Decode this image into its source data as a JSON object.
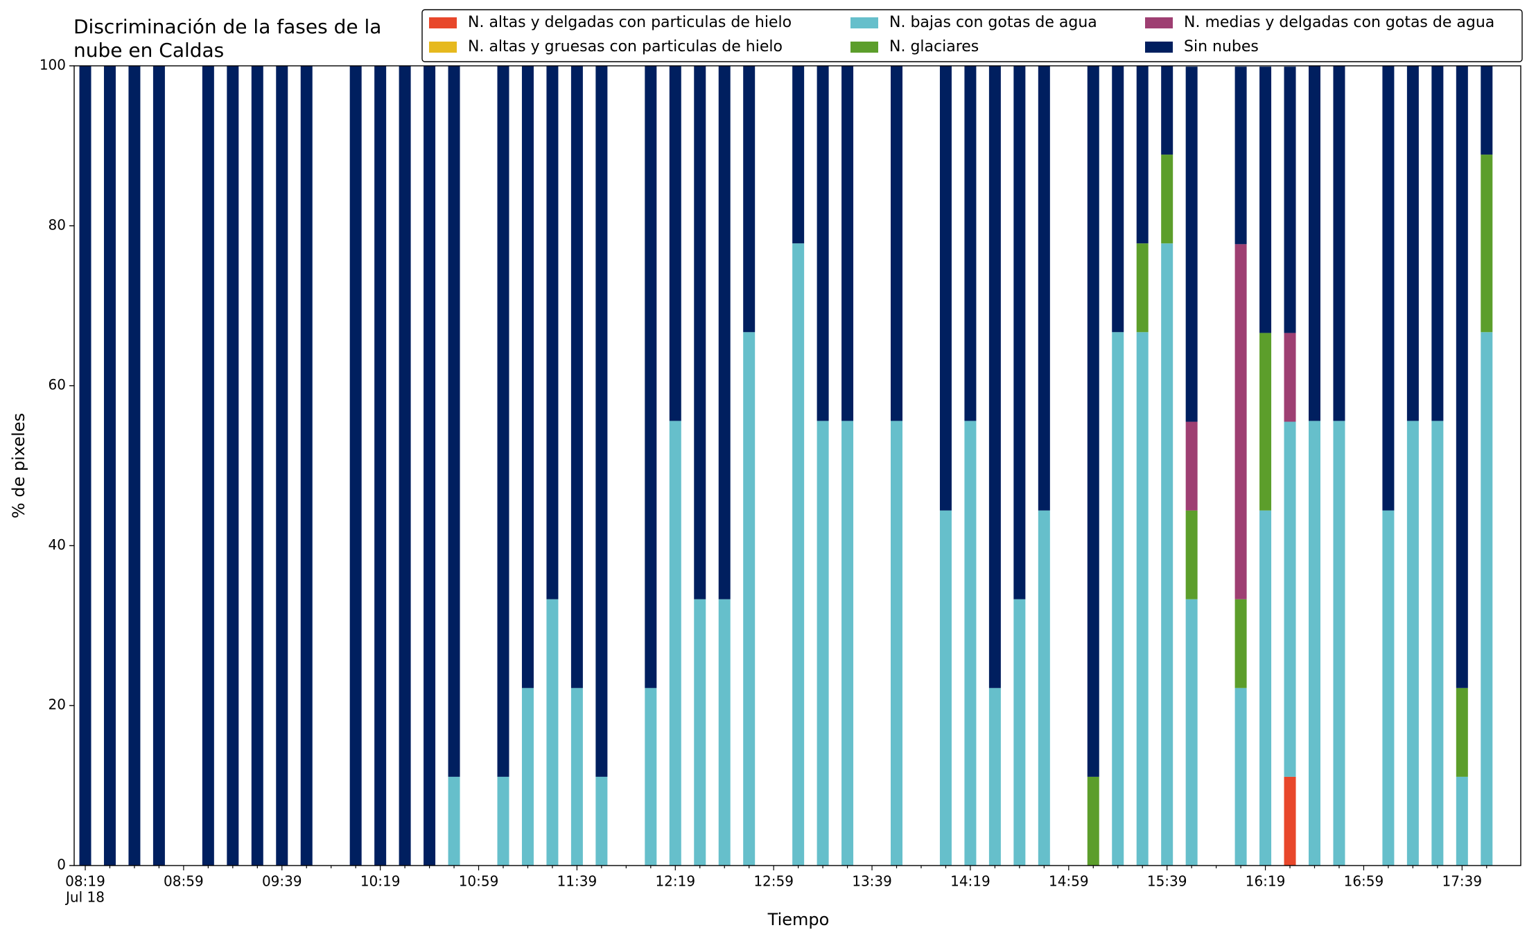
{
  "chart_data": {
    "type": "bar",
    "stacked": true,
    "title": [
      "Discriminación de la fases de la",
      "nube en Caldas"
    ],
    "x_label": "Tiempo",
    "y_label": "% de pixeles",
    "x_sublabel": "Jul 18",
    "categories": [
      "08:19",
      null,
      null,
      null,
      "08:59",
      null,
      null,
      null,
      "09:39",
      null,
      null,
      null,
      "10:19",
      null,
      null,
      null,
      "10:59",
      null,
      null,
      null,
      "11:39",
      null,
      null,
      null,
      "12:19",
      null,
      null,
      null,
      "12:59",
      null,
      null,
      null,
      "13:39",
      null,
      null,
      null,
      "14:19",
      null,
      null,
      null,
      "14:59",
      null,
      null,
      null,
      "15:39",
      null,
      null,
      null,
      "16:19",
      null,
      null,
      null,
      "16:59",
      null,
      null,
      null,
      "17:39",
      null
    ],
    "ylim": [
      0,
      100
    ],
    "yticks": [
      0,
      20,
      40,
      60,
      80,
      100
    ],
    "grid": false,
    "legend": "top right",
    "series": [
      {
        "name": "N. altas y delgadas con particulas de hielo",
        "color": "#e8472b",
        "values": [
          0,
          0,
          0,
          0,
          null,
          0,
          0,
          0,
          0,
          0,
          null,
          0,
          0,
          0,
          0,
          0,
          null,
          0,
          0,
          0,
          0,
          0,
          null,
          0,
          0,
          0,
          0,
          0,
          null,
          0,
          0,
          0,
          null,
          0,
          null,
          0,
          0,
          0,
          0,
          0,
          null,
          0,
          0,
          0,
          0,
          0,
          null,
          0,
          0,
          11.1,
          0,
          0,
          null,
          0,
          0,
          0,
          0,
          0
        ]
      },
      {
        "name": "N. altas y gruesas con particulas de hielo",
        "color": "#e6b91e",
        "values": [
          0,
          0,
          0,
          0,
          null,
          0,
          0,
          0,
          0,
          0,
          null,
          0,
          0,
          0,
          0,
          0,
          null,
          0,
          0,
          0,
          0,
          0,
          null,
          0,
          0,
          0,
          0,
          0,
          null,
          0,
          0,
          0,
          null,
          0,
          null,
          0,
          0,
          0,
          0,
          0,
          null,
          0,
          0,
          0,
          0,
          0,
          null,
          0,
          0,
          0,
          0,
          0,
          null,
          0,
          0,
          0,
          0,
          0
        ]
      },
      {
        "name": "N. bajas con gotas de agua",
        "color": "#66bfcb",
        "values": [
          0,
          0,
          0,
          0,
          null,
          0,
          0,
          0,
          0,
          0,
          null,
          0,
          0,
          0,
          0,
          11.1,
          null,
          11.1,
          22.2,
          33.3,
          22.2,
          11.1,
          null,
          22.2,
          55.6,
          33.3,
          33.3,
          66.7,
          null,
          77.8,
          55.6,
          55.6,
          null,
          55.6,
          null,
          44.4,
          55.6,
          22.2,
          33.3,
          44.4,
          null,
          0,
          66.7,
          66.7,
          77.8,
          33.3,
          null,
          22.2,
          44.4,
          44.4,
          55.6,
          55.6,
          null,
          44.4,
          55.6,
          55.6,
          11.1,
          66.7
        ]
      },
      {
        "name": "N. glaciares",
        "color": "#5c9e2b",
        "values": [
          0,
          0,
          0,
          0,
          null,
          0,
          0,
          0,
          0,
          0,
          null,
          0,
          0,
          0,
          0,
          0,
          null,
          0,
          0,
          0,
          0,
          0,
          null,
          0,
          0,
          0,
          0,
          0,
          null,
          0,
          0,
          0,
          null,
          0,
          null,
          0,
          0,
          0,
          0,
          0,
          null,
          11.1,
          0,
          11.1,
          11.1,
          11.1,
          null,
          11.1,
          22.2,
          0,
          0,
          0,
          null,
          0,
          0,
          0,
          11.1,
          22.2
        ]
      },
      {
        "name": "N. medias y delgadas con gotas de agua",
        "color": "#9e3f72",
        "values": [
          0,
          0,
          0,
          0,
          null,
          0,
          0,
          0,
          0,
          0,
          null,
          0,
          0,
          0,
          0,
          0,
          null,
          0,
          0,
          0,
          0,
          0,
          null,
          0,
          0,
          0,
          0,
          0,
          null,
          0,
          0,
          0,
          null,
          0,
          null,
          0,
          0,
          0,
          0,
          0,
          null,
          0,
          0,
          0,
          0,
          11.1,
          null,
          44.4,
          0,
          11.1,
          0,
          0,
          null,
          0,
          0,
          0,
          0,
          0
        ]
      },
      {
        "name": "Sin nubes",
        "color": "#001f5f",
        "values": [
          100,
          100,
          100,
          100,
          null,
          100,
          100,
          100,
          100,
          100,
          null,
          100,
          100,
          100,
          100,
          88.9,
          null,
          88.9,
          77.8,
          66.7,
          77.8,
          88.9,
          null,
          77.8,
          44.4,
          66.7,
          66.7,
          33.3,
          null,
          22.2,
          44.4,
          44.4,
          null,
          44.4,
          null,
          55.6,
          44.4,
          77.8,
          66.7,
          55.6,
          null,
          88.9,
          33.3,
          22.2,
          11.1,
          44.4,
          null,
          22.2,
          33.3,
          33.3,
          44.4,
          44.4,
          null,
          55.6,
          44.4,
          44.4,
          77.8,
          11.1
        ]
      }
    ]
  }
}
